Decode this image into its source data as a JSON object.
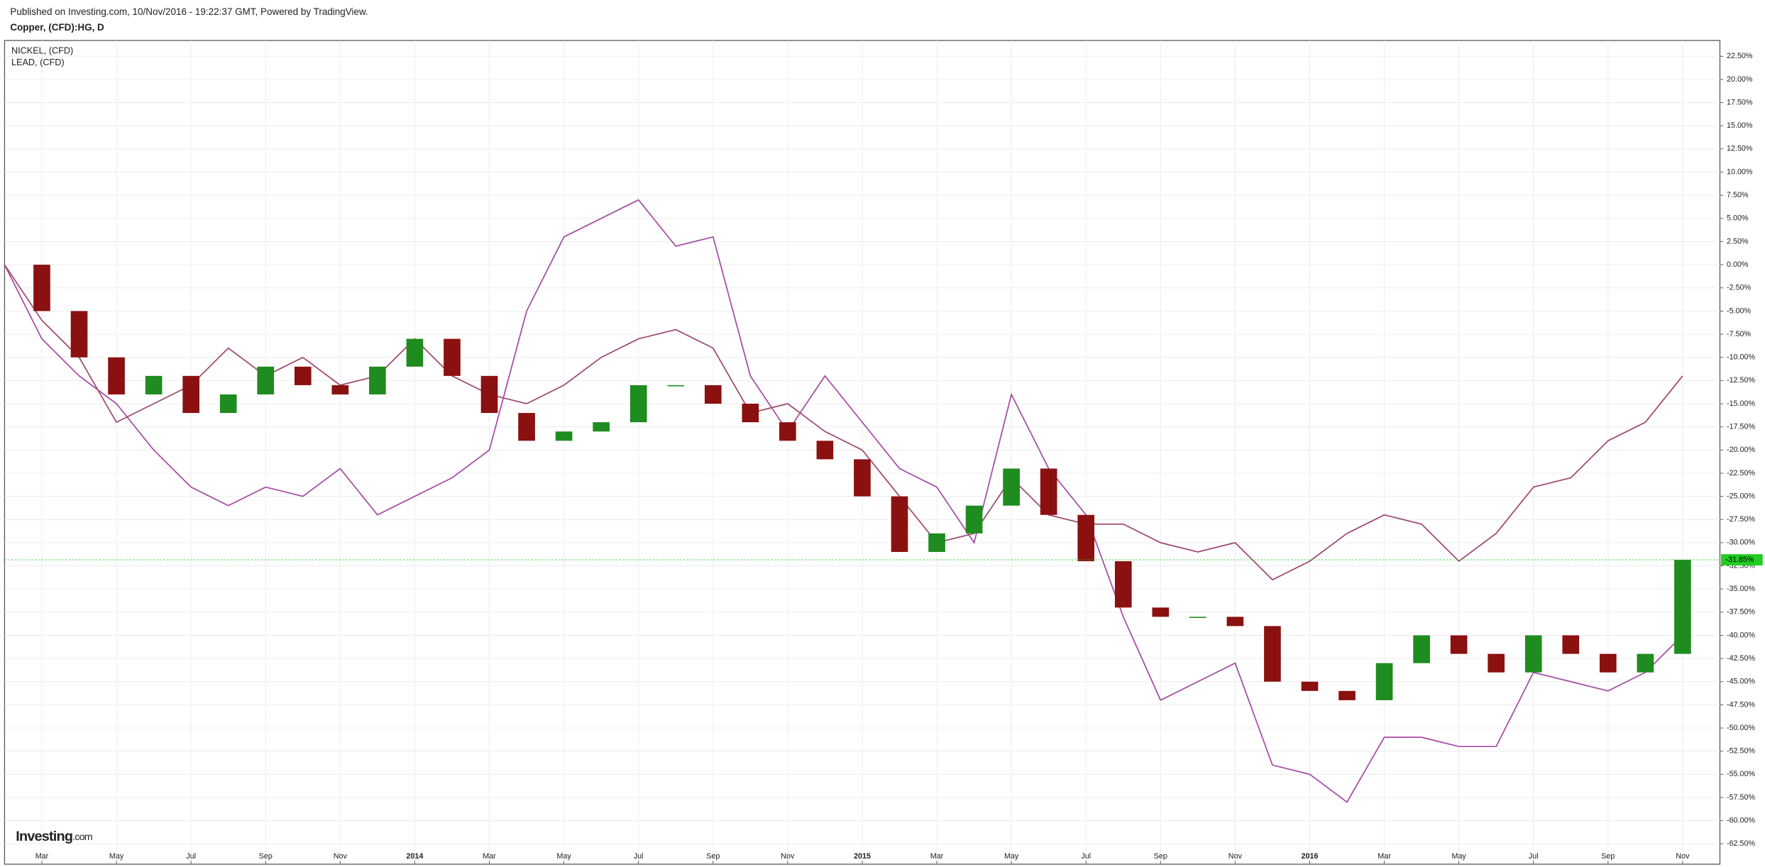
{
  "chart_data": {
    "type": "candle-line",
    "subtitle": "Published on Investing.com, 10/Nov/2016 - 19:22:37 GMT, Powered by TradingView.",
    "title": "Copper, (CFD):HG, D",
    "logo": {
      "name": "Investing",
      "suffix": ".com"
    },
    "x": [
      "2013-02",
      "2013-03",
      "2013-04",
      "2013-05",
      "2013-06",
      "2013-07",
      "2013-08",
      "2013-09",
      "2013-10",
      "2013-11",
      "2013-12",
      "2014-01",
      "2014-02",
      "2014-03",
      "2014-04",
      "2014-05",
      "2014-06",
      "2014-07",
      "2014-08",
      "2014-09",
      "2014-10",
      "2014-11",
      "2014-12",
      "2015-01",
      "2015-02",
      "2015-03",
      "2015-04",
      "2015-05",
      "2015-06",
      "2015-07",
      "2015-08",
      "2015-09",
      "2015-10",
      "2015-11",
      "2015-12",
      "2016-01",
      "2016-02",
      "2016-03",
      "2016-04",
      "2016-05",
      "2016-06",
      "2016-07",
      "2016-08",
      "2016-09",
      "2016-10",
      "2016-11"
    ],
    "xlim": [
      "2013-02",
      "2016-12"
    ],
    "xticks": [
      {
        "value": "2013-03",
        "label": "Mar"
      },
      {
        "value": "2013-05",
        "label": "May"
      },
      {
        "value": "2013-07",
        "label": "Jul"
      },
      {
        "value": "2013-09",
        "label": "Sep"
      },
      {
        "value": "2013-11",
        "label": "Nov"
      },
      {
        "value": "2014-01",
        "label": "2014"
      },
      {
        "value": "2014-03",
        "label": "Mar"
      },
      {
        "value": "2014-05",
        "label": "May"
      },
      {
        "value": "2014-07",
        "label": "Jul"
      },
      {
        "value": "2014-09",
        "label": "Sep"
      },
      {
        "value": "2014-11",
        "label": "Nov"
      },
      {
        "value": "2015-01",
        "label": "2015"
      },
      {
        "value": "2015-03",
        "label": "Mar"
      },
      {
        "value": "2015-05",
        "label": "May"
      },
      {
        "value": "2015-07",
        "label": "Jul"
      },
      {
        "value": "2015-09",
        "label": "Sep"
      },
      {
        "value": "2015-11",
        "label": "Nov"
      },
      {
        "value": "2016-01",
        "label": "2016"
      },
      {
        "value": "2016-03",
        "label": "Mar"
      },
      {
        "value": "2016-05",
        "label": "May"
      },
      {
        "value": "2016-07",
        "label": "Jul"
      },
      {
        "value": "2016-09",
        "label": "Sep"
      },
      {
        "value": "2016-11",
        "label": "Nov"
      }
    ],
    "ylim": [
      -64.7,
      24.2
    ],
    "yticks": [
      {
        "value": 22.5,
        "label": "22.50%"
      },
      {
        "value": 20,
        "label": "20.00%"
      },
      {
        "value": 17.5,
        "label": "17.50%"
      },
      {
        "value": 15,
        "label": "15.00%"
      },
      {
        "value": 12.5,
        "label": "12.50%"
      },
      {
        "value": 10,
        "label": "10.00%"
      },
      {
        "value": 7.5,
        "label": "7.50%"
      },
      {
        "value": 5,
        "label": "5.00%"
      },
      {
        "value": 2.5,
        "label": "2.50%"
      },
      {
        "value": 0,
        "label": "0.00%"
      },
      {
        "value": -2.5,
        "label": "-2.50%"
      },
      {
        "value": -5,
        "label": "-5.00%"
      },
      {
        "value": -7.5,
        "label": "-7.50%"
      },
      {
        "value": -10,
        "label": "-10.00%"
      },
      {
        "value": -12.5,
        "label": "-12.50%"
      },
      {
        "value": -15,
        "label": "-15.00%"
      },
      {
        "value": -17.5,
        "label": "-17.50%"
      },
      {
        "value": -20,
        "label": "-20.00%"
      },
      {
        "value": -22.5,
        "label": "-22.50%"
      },
      {
        "value": -25,
        "label": "-25.00%"
      },
      {
        "value": -27.5,
        "label": "-27.50%"
      },
      {
        "value": -30,
        "label": "-30.00%"
      },
      {
        "value": -32.5,
        "label": "-32.50%"
      },
      {
        "value": -35,
        "label": "-35.00%"
      },
      {
        "value": -37.5,
        "label": "-37.50%"
      },
      {
        "value": -40,
        "label": "-40.00%"
      },
      {
        "value": -42.5,
        "label": "-42.50%"
      },
      {
        "value": -45,
        "label": "-45.00%"
      },
      {
        "value": -47.5,
        "label": "-47.50%"
      },
      {
        "value": -50,
        "label": "-50.00%"
      },
      {
        "value": -52.5,
        "label": "-52.50%"
      },
      {
        "value": -55,
        "label": "-55.00%"
      },
      {
        "value": -57.5,
        "label": "-57.50%"
      },
      {
        "value": -60,
        "label": "-60.00%"
      },
      {
        "value": -62.5,
        "label": "-62.50%"
      }
    ],
    "grid": true,
    "main_series": {
      "up_color": "#1e8c1e",
      "down_color": "#8b1010",
      "last_color": "#22cc22",
      "last_label": "-31.85%",
      "values": [
        0,
        -5,
        -10,
        -14,
        -12,
        -16,
        -14,
        -11,
        -13,
        -14,
        -11,
        -8,
        -12,
        -16,
        -19,
        -18,
        -17,
        -13,
        -13,
        -15,
        -17,
        -19,
        -21,
        -25,
        -31,
        -29,
        -26,
        -22,
        -27,
        -32,
        -37,
        -38,
        -38,
        -39,
        -45,
        -46,
        -47,
        -43,
        -40,
        -42,
        -44,
        -40,
        -42,
        -44,
        -42,
        -31.85
      ]
    },
    "series": [
      {
        "name": "NICKEL,  (CFD)",
        "color": "#a64ca6",
        "values": [
          0,
          -8,
          -12,
          -15,
          -20,
          -24,
          -26,
          -24,
          -25,
          -22,
          -27,
          -25,
          -23,
          -20,
          -5,
          3,
          5,
          7,
          2,
          3,
          -12,
          -18,
          -12,
          -17,
          -22,
          -24,
          -30,
          -14,
          -22,
          -27,
          -38,
          -47,
          -45,
          -43,
          -54,
          -55,
          -58,
          -51,
          -51,
          -52,
          -52,
          -44,
          -45,
          -46,
          -44,
          -40
        ]
      },
      {
        "name": "LEAD,  (CFD)",
        "color": "#9e4a6e",
        "values": [
          0,
          -6,
          -10,
          -17,
          -15,
          -13,
          -9,
          -12,
          -10,
          -13,
          -12,
          -8,
          -12,
          -14,
          -15,
          -13,
          -10,
          -8,
          -7,
          -9,
          -16,
          -15,
          -18,
          -20,
          -25,
          -30,
          -29,
          -23,
          -27,
          -28,
          -28,
          -30,
          -31,
          -30,
          -34,
          -32,
          -29,
          -27,
          -28,
          -32,
          -29,
          -24,
          -23,
          -19,
          -17,
          -12
        ]
      }
    ]
  }
}
